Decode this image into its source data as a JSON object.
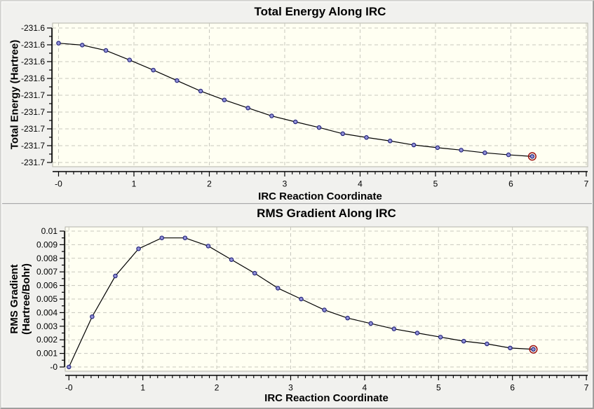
{
  "style": {
    "panel_bg": "#f1f1ee",
    "plot_bg": "#fffff2",
    "frame": "#b4b4a9",
    "grid": "#c8c8be",
    "axis": "#000000",
    "line": "#000000",
    "marker_fill": "#9090d6",
    "marker_edge": "#1f1f78",
    "highlight_ring": "#9b1010",
    "text": "#000000"
  },
  "chart_data": [
    {
      "type": "line",
      "title": "Total Energy Along IRC",
      "xlabel": "IRC Reaction Coordinate",
      "ylabel_lines": [
        "Total Energy (Hartree)"
      ],
      "x": [
        0,
        0.314,
        0.628,
        0.942,
        1.257,
        1.571,
        1.885,
        2.199,
        2.513,
        2.827,
        3.142,
        3.456,
        3.77,
        4.084,
        4.398,
        4.712,
        5.027,
        5.341,
        5.655,
        5.969,
        6.283
      ],
      "y": [
        -231.6113,
        -231.6127,
        -231.6167,
        -231.6238,
        -231.6313,
        -231.6391,
        -231.6469,
        -231.6535,
        -231.6595,
        -231.6654,
        -231.6698,
        -231.674,
        -231.6786,
        -231.6814,
        -231.684,
        -231.687,
        -231.689,
        -231.6908,
        -231.6928,
        -231.6943,
        -231.6955
      ],
      "xlim": [
        -0.079,
        7.019
      ],
      "ylim": [
        -231.70313,
        -231.59636
      ],
      "x_ticks": {
        "values": [
          0,
          1,
          2,
          3,
          4,
          5,
          6,
          7
        ],
        "labels": [
          "-0",
          "1",
          "2",
          "3",
          "4",
          "5",
          "6",
          "7"
        ],
        "minor_step": 0.1
      },
      "y_ticks": {
        "values": [
          -231.6,
          -231.6125,
          -231.625,
          -231.6375,
          -231.65,
          -231.6625,
          -231.675,
          -231.6875,
          -231.7
        ],
        "labels": [
          "-231.6",
          "-231.6",
          "-231.6",
          "-231.6",
          "-231.7",
          "-231.7",
          "-231.7",
          "-231.7",
          "-231.7"
        ]
      },
      "grid": true,
      "legend": "none",
      "highlight_last_point": true
    },
    {
      "type": "line",
      "title": "RMS Gradient Along IRC",
      "xlabel": "IRC Reaction Coordinate",
      "ylabel_lines": [
        "RMS Gradient",
        "(Hartree/Bohr)"
      ],
      "x": [
        0,
        0.314,
        0.628,
        0.942,
        1.257,
        1.571,
        1.885,
        2.199,
        2.513,
        2.827,
        3.142,
        3.456,
        3.77,
        4.084,
        4.398,
        4.712,
        5.027,
        5.341,
        5.655,
        5.969,
        6.283
      ],
      "y": [
        0.0,
        0.0037,
        0.0067,
        0.0087,
        0.0095,
        0.0095,
        0.0089,
        0.0079,
        0.0069,
        0.0058,
        0.005,
        0.0042,
        0.0036,
        0.0032,
        0.0028,
        0.0025,
        0.0022,
        0.0019,
        0.0017,
        0.0014,
        0.0013
      ],
      "xlim": [
        -0.05,
        7.018
      ],
      "ylim": [
        -0.000309,
        0.010309
      ],
      "x_ticks": {
        "values": [
          0,
          1,
          2,
          3,
          4,
          5,
          6,
          7
        ],
        "labels": [
          "-0",
          "1",
          "2",
          "3",
          "4",
          "5",
          "6",
          "7"
        ],
        "minor_step": 0.1
      },
      "y_ticks": {
        "values": [
          0.01,
          0.009,
          0.008,
          0.007,
          0.006,
          0.005,
          0.004,
          0.003,
          0.002,
          0.001,
          0
        ],
        "labels": [
          "0.01",
          "0.009",
          "0.008",
          "0.007",
          "0.006",
          "0.005",
          "0.004",
          "0.003",
          "0.002",
          "0.001",
          "-0"
        ]
      },
      "grid": true,
      "legend": "none",
      "highlight_last_point": true
    }
  ]
}
